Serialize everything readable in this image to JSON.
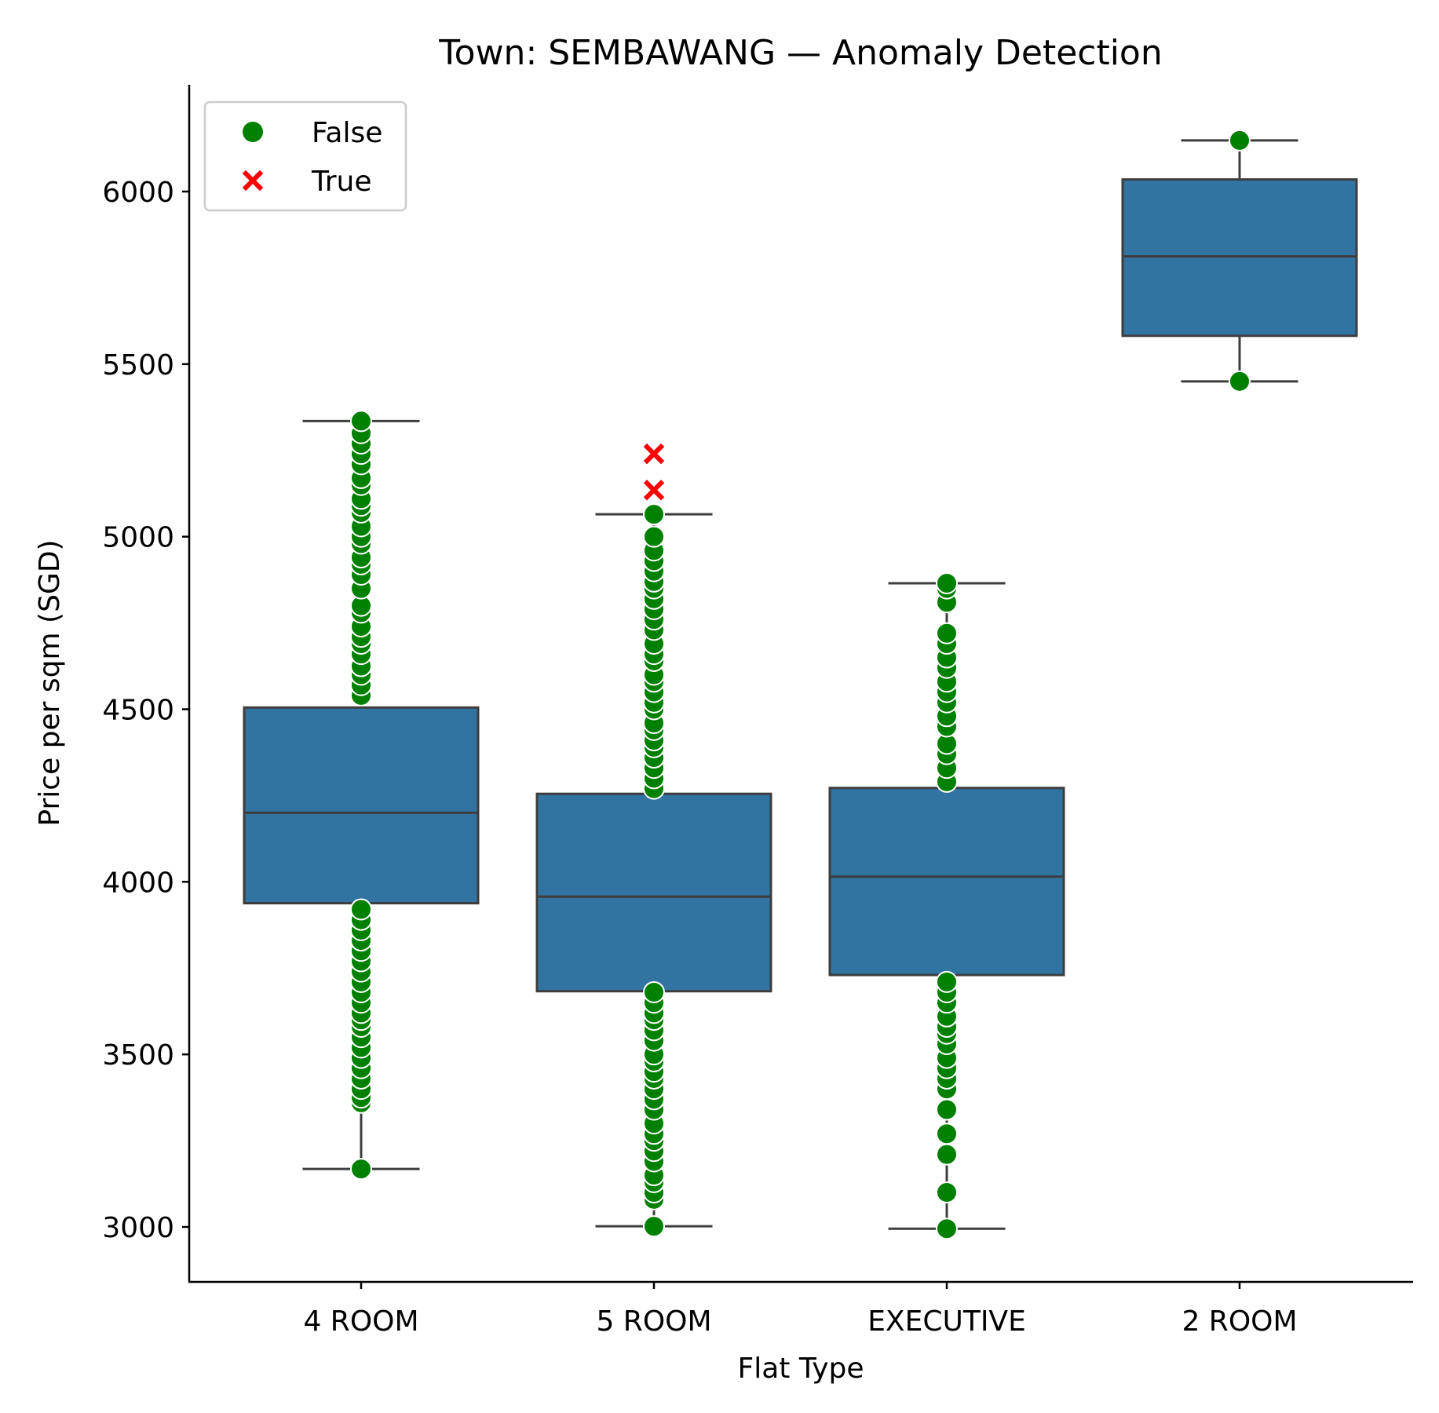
{
  "chart_data": {
    "type": "box",
    "title": "Town: SEMBAWANG — Anomaly Detection",
    "xlabel": "Flat Type",
    "ylabel": "Price per sqm (SGD)",
    "ylim": [
      2840,
      6310
    ],
    "yticks": [
      3000,
      3500,
      4000,
      4500,
      5000,
      5500,
      6000
    ],
    "categories": [
      "4 ROOM",
      "5 ROOM",
      "EXECUTIVE",
      "2 ROOM"
    ],
    "box_color": "#3274a1",
    "box_edge_color": "#3d3d3d",
    "legend": {
      "position": "top-left",
      "entries": [
        {
          "label": "False",
          "marker": "circle",
          "color": "#008000"
        },
        {
          "label": "True",
          "marker": "x",
          "color": "#ff0000"
        }
      ]
    },
    "boxes": [
      {
        "category": "4 ROOM",
        "whisker_low": 3168,
        "q1": 3938,
        "median": 4200,
        "q3": 4505,
        "whisker_high": 5335
      },
      {
        "category": "5 ROOM",
        "whisker_low": 3002,
        "q1": 3683,
        "median": 3957,
        "q3": 4255,
        "whisker_high": 5065
      },
      {
        "category": "EXECUTIVE",
        "whisker_low": 2995,
        "q1": 3730,
        "median": 4015,
        "q3": 4272,
        "whisker_high": 4865
      },
      {
        "category": "2 ROOM",
        "whisker_low": 5450,
        "q1": 5582,
        "median": 5812,
        "q3": 6035,
        "whisker_high": 6148
      }
    ],
    "points": [
      {
        "category": "4 ROOM",
        "anomaly": false,
        "values": [
          3168,
          3360,
          3375,
          3400,
          3430,
          3460,
          3490,
          3520,
          3550,
          3580,
          3600,
          3620,
          3650,
          3680,
          3710,
          3740,
          3770,
          3800,
          3830,
          3860,
          3890,
          3920,
          4540,
          4570,
          4600,
          4625,
          4660,
          4690,
          4710,
          4740,
          4780,
          4800,
          4850,
          4890,
          4920,
          4940,
          4980,
          5000,
          5030,
          5070,
          5090,
          5110,
          5150,
          5170,
          5210,
          5240,
          5270,
          5300,
          5335
        ]
      },
      {
        "category": "5 ROOM",
        "anomaly": false,
        "values": [
          3002,
          3080,
          3100,
          3130,
          3150,
          3190,
          3220,
          3250,
          3270,
          3300,
          3340,
          3370,
          3400,
          3430,
          3450,
          3480,
          3500,
          3540,
          3570,
          3600,
          3620,
          3650,
          3680,
          4270,
          4300,
          4330,
          4360,
          4390,
          4410,
          4440,
          4460,
          4500,
          4520,
          4550,
          4580,
          4600,
          4640,
          4660,
          4690,
          4730,
          4760,
          4790,
          4820,
          4850,
          4870,
          4900,
          4930,
          4960,
          5000,
          5065
        ]
      },
      {
        "category": "5 ROOM",
        "anomaly": true,
        "values": [
          5135,
          5240
        ]
      },
      {
        "category": "EXECUTIVE",
        "anomaly": false,
        "values": [
          2995,
          3100,
          3210,
          3270,
          3340,
          3400,
          3430,
          3460,
          3490,
          3530,
          3560,
          3580,
          3610,
          3650,
          3680,
          3710,
          4290,
          4330,
          4370,
          4400,
          4450,
          4480,
          4520,
          4550,
          4580,
          4620,
          4650,
          4690,
          4720,
          4810,
          4850,
          4865
        ]
      },
      {
        "category": "2 ROOM",
        "anomaly": false,
        "values": [
          5450,
          6148
        ]
      }
    ]
  }
}
